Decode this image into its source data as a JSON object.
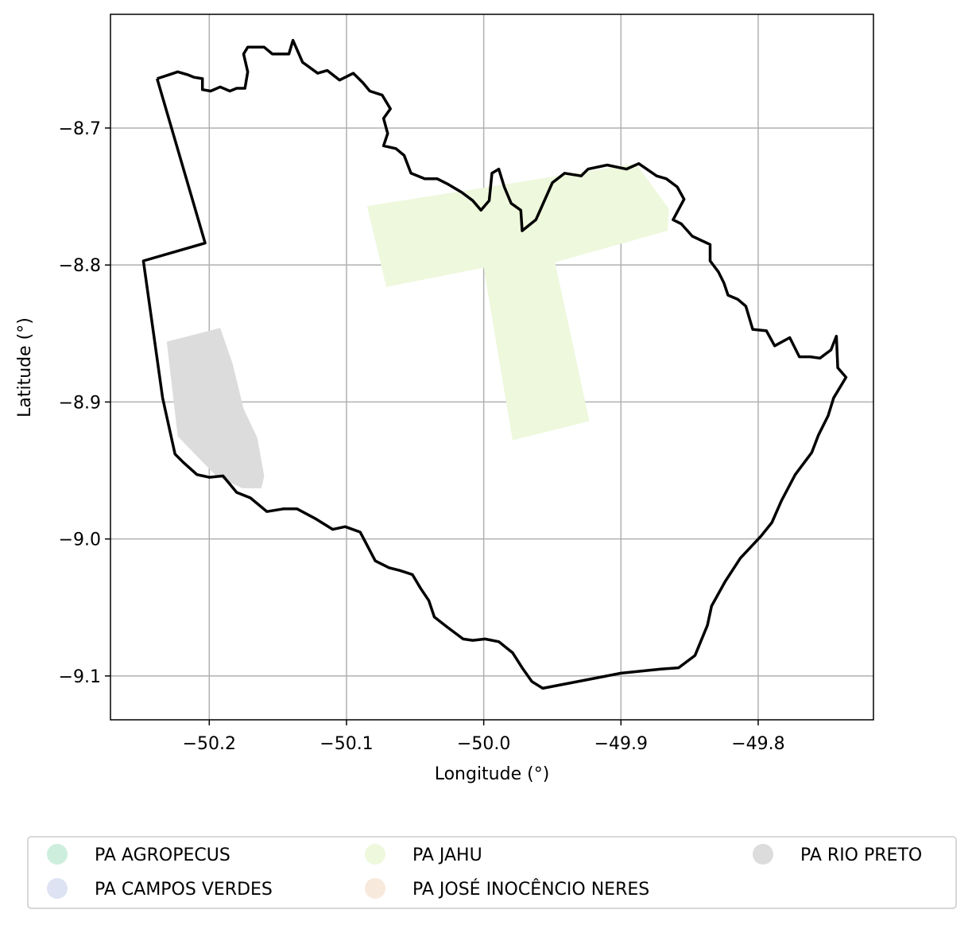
{
  "chart_data": {
    "type": "map",
    "xlabel": "Longitude (°)",
    "ylabel": "Latitude (°)",
    "xlim": [
      -50.272,
      -49.716
    ],
    "ylim": [
      -9.132,
      -8.617
    ],
    "xticks": [
      -50.2,
      -50.1,
      -50.0,
      -49.9,
      -49.8
    ],
    "xtick_labels": [
      "−50.2",
      "−50.1",
      "−50.0",
      "−49.9",
      "−49.8"
    ],
    "yticks": [
      -8.7,
      -8.8,
      -8.9,
      -9.0,
      -9.1
    ],
    "ytick_labels": [
      "−8.7",
      "−8.8",
      "−8.9",
      "−9.0",
      "−9.1"
    ],
    "grid": true,
    "legend_position": "bottom",
    "legend": [
      {
        "label": "PA AGROPECUS",
        "color": "#cdeedd"
      },
      {
        "label": "PA CAMPOS VERDES",
        "color": "#dde3f2"
      },
      {
        "label": "PA JAHU",
        "color": "#eef8dd"
      },
      {
        "label": "PA JOSÉ INOCÊNCIO NERES",
        "color": "#f7e9dc"
      },
      {
        "label": "PA RIO PRETO",
        "color": "#dcdcdc"
      }
    ],
    "boundary": [
      [
        -50.238,
        -8.664
      ],
      [
        -50.229,
        -8.661
      ],
      [
        -50.223,
        -8.659
      ],
      [
        -50.216,
        -8.661
      ],
      [
        -50.211,
        -8.663
      ],
      [
        -50.205,
        -8.664
      ],
      [
        -50.205,
        -8.672
      ],
      [
        -50.199,
        -8.673
      ],
      [
        -50.192,
        -8.67
      ],
      [
        -50.185,
        -8.673
      ],
      [
        -50.18,
        -8.671
      ],
      [
        -50.174,
        -8.671
      ],
      [
        -50.172,
        -8.659
      ],
      [
        -50.175,
        -8.646
      ],
      [
        -50.172,
        -8.641
      ],
      [
        -50.16,
        -8.641
      ],
      [
        -50.154,
        -8.646
      ],
      [
        -50.142,
        -8.646
      ],
      [
        -50.139,
        -8.636
      ],
      [
        -50.132,
        -8.652
      ],
      [
        -50.121,
        -8.66
      ],
      [
        -50.114,
        -8.658
      ],
      [
        -50.105,
        -8.665
      ],
      [
        -50.095,
        -8.66
      ],
      [
        -50.088,
        -8.667
      ],
      [
        -50.083,
        -8.673
      ],
      [
        -50.074,
        -8.676
      ],
      [
        -50.068,
        -8.686
      ],
      [
        -50.073,
        -8.693
      ],
      [
        -50.07,
        -8.704
      ],
      [
        -50.073,
        -8.713
      ],
      [
        -50.064,
        -8.715
      ],
      [
        -50.058,
        -8.72
      ],
      [
        -50.053,
        -8.733
      ],
      [
        -50.043,
        -8.737
      ],
      [
        -50.034,
        -8.737
      ],
      [
        -50.026,
        -8.741
      ],
      [
        -50.016,
        -8.747
      ],
      [
        -50.008,
        -8.753
      ],
      [
        -50.002,
        -8.76
      ],
      [
        -49.996,
        -8.753
      ],
      [
        -49.994,
        -8.733
      ],
      [
        -49.989,
        -8.73
      ],
      [
        -49.985,
        -8.743
      ],
      [
        -49.98,
        -8.755
      ],
      [
        -49.973,
        -8.76
      ],
      [
        -49.972,
        -8.775
      ],
      [
        -49.962,
        -8.767
      ],
      [
        -49.95,
        -8.74
      ],
      [
        -49.941,
        -8.733
      ],
      [
        -49.929,
        -8.735
      ],
      [
        -49.924,
        -8.73
      ],
      [
        -49.91,
        -8.727
      ],
      [
        -49.896,
        -8.73
      ],
      [
        -49.887,
        -8.726
      ],
      [
        -49.874,
        -8.735
      ],
      [
        -49.867,
        -8.737
      ],
      [
        -49.859,
        -8.743
      ],
      [
        -49.854,
        -8.752
      ],
      [
        -49.862,
        -8.767
      ],
      [
        -49.856,
        -8.77
      ],
      [
        -49.848,
        -8.779
      ],
      [
        -49.835,
        -8.785
      ],
      [
        -49.835,
        -8.797
      ],
      [
        -49.829,
        -8.805
      ],
      [
        -49.825,
        -8.813
      ],
      [
        -49.822,
        -8.822
      ],
      [
        -49.815,
        -8.825
      ],
      [
        -49.809,
        -8.83
      ],
      [
        -49.804,
        -8.847
      ],
      [
        -49.794,
        -8.848
      ],
      [
        -49.788,
        -8.859
      ],
      [
        -49.777,
        -8.853
      ],
      [
        -49.77,
        -8.867
      ],
      [
        -49.762,
        -8.867
      ],
      [
        -49.755,
        -8.868
      ],
      [
        -49.747,
        -8.862
      ],
      [
        -49.743,
        -8.852
      ],
      [
        -49.742,
        -8.875
      ],
      [
        -49.736,
        -8.882
      ],
      [
        -49.745,
        -8.897
      ],
      [
        -49.749,
        -8.91
      ],
      [
        -49.756,
        -8.924
      ],
      [
        -49.761,
        -8.937
      ],
      [
        -49.773,
        -8.953
      ],
      [
        -49.783,
        -8.972
      ],
      [
        -49.79,
        -8.988
      ],
      [
        -49.798,
        -8.998
      ],
      [
        -49.813,
        -9.014
      ],
      [
        -49.824,
        -9.031
      ],
      [
        -49.834,
        -9.049
      ],
      [
        -49.837,
        -9.063
      ],
      [
        -49.846,
        -9.085
      ],
      [
        -49.858,
        -9.094
      ],
      [
        -49.871,
        -9.095
      ],
      [
        -49.9,
        -9.098
      ],
      [
        -49.957,
        -9.109
      ],
      [
        -49.965,
        -9.104
      ],
      [
        -49.972,
        -9.094
      ],
      [
        -49.979,
        -9.083
      ],
      [
        -49.989,
        -9.075
      ],
      [
        -49.999,
        -9.073
      ],
      [
        -50.008,
        -9.074
      ],
      [
        -50.015,
        -9.073
      ],
      [
        -50.027,
        -9.064
      ],
      [
        -50.036,
        -9.057
      ],
      [
        -50.04,
        -9.045
      ],
      [
        -50.046,
        -9.036
      ],
      [
        -50.052,
        -9.026
      ],
      [
        -50.061,
        -9.023
      ],
      [
        -50.069,
        -9.021
      ],
      [
        -50.079,
        -9.016
      ],
      [
        -50.09,
        -8.995
      ],
      [
        -50.101,
        -8.991
      ],
      [
        -50.11,
        -8.993
      ],
      [
        -50.123,
        -8.985
      ],
      [
        -50.136,
        -8.978
      ],
      [
        -50.146,
        -8.978
      ],
      [
        -50.158,
        -8.98
      ],
      [
        -50.17,
        -8.97
      ],
      [
        -50.18,
        -8.966
      ],
      [
        -50.19,
        -8.954
      ],
      [
        -50.2,
        -8.955
      ],
      [
        -50.209,
        -8.953
      ],
      [
        -50.219,
        -8.944
      ],
      [
        -50.225,
        -8.938
      ],
      [
        -50.234,
        -8.897
      ],
      [
        -50.248,
        -8.797
      ],
      [
        -50.203,
        -8.784
      ],
      [
        -50.238,
        -8.664
      ]
    ],
    "regions": [
      {
        "name": "PA JAHU",
        "polygon": [
          [
            -50.085,
            -8.757
          ],
          [
            -49.889,
            -8.726
          ],
          [
            -49.865,
            -8.759
          ],
          [
            -49.866,
            -8.775
          ],
          [
            -49.948,
            -8.798
          ],
          [
            -49.923,
            -8.914
          ],
          [
            -49.979,
            -8.928
          ],
          [
            -50.0,
            -8.802
          ],
          [
            -50.071,
            -8.816
          ]
        ]
      },
      {
        "name": "PA RIO PRETO",
        "polygon": [
          [
            -50.231,
            -8.856
          ],
          [
            -50.192,
            -8.846
          ],
          [
            -50.183,
            -8.872
          ],
          [
            -50.175,
            -8.905
          ],
          [
            -50.165,
            -8.926
          ],
          [
            -50.16,
            -8.954
          ],
          [
            -50.162,
            -8.963
          ],
          [
            -50.176,
            -8.963
          ],
          [
            -50.195,
            -8.954
          ],
          [
            -50.223,
            -8.925
          ]
        ]
      }
    ]
  }
}
